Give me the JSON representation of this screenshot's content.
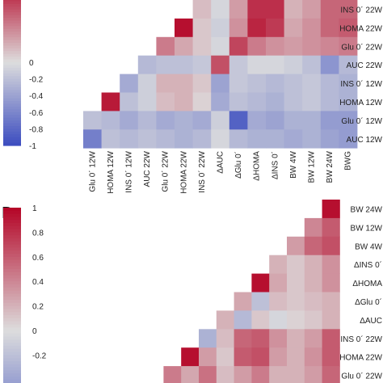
{
  "chart_data": [
    {
      "type": "heatmap",
      "panel_label": "",
      "title": "",
      "colorbar": {
        "range": [
          -1,
          1
        ],
        "visible_tick_labels": [
          "0",
          "-0.2",
          "-0.4",
          "-0.6",
          "-0.8",
          "-1"
        ],
        "colors": {
          "low": "#3b4cc0",
          "mid": "#dddddd",
          "high": "#b40426"
        }
      },
      "rows": [
        "INS 0´ 22W",
        "HOMA 22W",
        "Glu 0´ 22W",
        "AUC 22W",
        "INS 0´ 12W",
        "HOMA 12W",
        "Glu 0´ 12W",
        "AUC 12W"
      ],
      "columns": [
        "Glu 0´ 12W",
        "HOMA 12W",
        "INS 0´ 12W",
        "AUC 22W",
        "Glu 0´ 22W",
        "HOMA 22W",
        "INS 0´ 22W",
        "ΔAUC",
        "ΔGlu 0´",
        "ΔHOMA",
        "ΔINS 0´",
        "BW 4W",
        "BW 12W",
        "BW 24W",
        "BWG"
      ],
      "cells": [
        {
          "row": "INS 0´ 22W",
          "values": [
            null,
            null,
            null,
            null,
            null,
            null,
            0.15,
            -0.05,
            0.3,
            0.8,
            0.8,
            0.2,
            0.3,
            0.55,
            0.55
          ]
        },
        {
          "row": "HOMA 22W",
          "values": [
            null,
            null,
            null,
            null,
            null,
            0.95,
            0.1,
            -0.1,
            0.35,
            0.85,
            0.75,
            0.25,
            0.35,
            0.55,
            0.6
          ]
        },
        {
          "row": "Glu 0´ 22W",
          "values": [
            null,
            null,
            null,
            null,
            0.45,
            0.25,
            0.1,
            -0.05,
            0.7,
            0.45,
            0.35,
            0.3,
            0.35,
            0.4,
            0.45
          ]
        },
        {
          "row": "AUC 22W",
          "values": [
            null,
            null,
            null,
            -0.25,
            -0.2,
            -0.2,
            -0.15,
            0.65,
            -0.15,
            -0.05,
            -0.05,
            -0.1,
            -0.2,
            -0.5,
            -0.25
          ]
        },
        {
          "row": "INS 0´ 12W",
          "values": [
            null,
            null,
            -0.35,
            -0.1,
            0.2,
            0.2,
            0.1,
            -0.4,
            -0.15,
            -0.2,
            -0.25,
            -0.2,
            -0.15,
            -0.25,
            -0.3
          ]
        },
        {
          "row": "HOMA 12W",
          "values": [
            null,
            0.9,
            -0.2,
            -0.1,
            0.15,
            0.2,
            0.05,
            -0.35,
            -0.2,
            -0.25,
            -0.3,
            -0.2,
            -0.15,
            -0.25,
            -0.3
          ]
        },
        {
          "row": "Glu 0´ 12W",
          "values": [
            -0.2,
            -0.25,
            -0.35,
            -0.25,
            -0.35,
            -0.3,
            -0.35,
            -0.1,
            -0.85,
            -0.35,
            -0.4,
            -0.3,
            -0.3,
            -0.45,
            -0.45
          ]
        },
        {
          "row": "AUC 12W",
          "values": [
            -0.65,
            -0.2,
            -0.25,
            -0.2,
            -0.25,
            -0.3,
            -0.25,
            -0.05,
            -0.25,
            -0.3,
            -0.3,
            -0.35,
            -0.3,
            -0.4,
            -0.45
          ]
        }
      ]
    },
    {
      "type": "heatmap",
      "panel_label": "B",
      "title": "",
      "colorbar": {
        "range": [
          -1,
          1
        ],
        "visible_tick_labels": [
          "1",
          "0.8",
          "0.6",
          "0.4",
          "0.2",
          "0",
          "-0.2"
        ],
        "colors": {
          "low": "#3b4cc0",
          "mid": "#dddddd",
          "high": "#b40426"
        }
      },
      "rows": [
        "BW 24W",
        "BW 12W",
        "BW 4W",
        "ΔINS 0´",
        "ΔHOMA",
        "ΔGlu 0´",
        "ΔAUC",
        "INS 0´ 22W",
        "HOMA 22W",
        "Glu 0´ 22W"
      ],
      "cells": [
        {
          "row": "BW 24W",
          "values": [
            null,
            null,
            null,
            null,
            null,
            null,
            null,
            null,
            null,
            null,
            null,
            null,
            0.95
          ]
        },
        {
          "row": "BW 12W",
          "values": [
            null,
            null,
            null,
            null,
            null,
            null,
            null,
            null,
            null,
            null,
            null,
            0.4,
            0.6
          ]
        },
        {
          "row": "BW 4W",
          "values": [
            null,
            null,
            null,
            null,
            null,
            null,
            null,
            null,
            null,
            null,
            0.3,
            0.55,
            0.65
          ]
        },
        {
          "row": "ΔINS 0´",
          "values": [
            null,
            null,
            null,
            null,
            null,
            null,
            null,
            null,
            null,
            0.2,
            0.1,
            0.2,
            0.35
          ]
        },
        {
          "row": "ΔHOMA",
          "values": [
            null,
            null,
            null,
            null,
            null,
            null,
            null,
            null,
            0.95,
            0.25,
            0.1,
            0.2,
            0.35
          ]
        },
        {
          "row": "ΔGlu 0´",
          "values": [
            null,
            null,
            null,
            null,
            null,
            null,
            null,
            0.25,
            -0.2,
            0.15,
            0.1,
            0.15,
            0.2
          ]
        },
        {
          "row": "ΔAUC",
          "values": [
            null,
            null,
            null,
            null,
            null,
            null,
            0.2,
            -0.25,
            0.1,
            -0.05,
            0.05,
            0.1,
            0.2
          ]
        },
        {
          "row": "INS 0´ 22W",
          "values": [
            null,
            null,
            null,
            null,
            null,
            -0.3,
            0.15,
            0.55,
            0.6,
            0.35,
            0.2,
            0.3,
            0.6
          ]
        },
        {
          "row": "HOMA 22W",
          "values": [
            null,
            null,
            null,
            null,
            0.95,
            0.3,
            0.1,
            0.6,
            0.65,
            0.3,
            0.2,
            0.35,
            0.6
          ]
        },
        {
          "row": "Glu 0´ 22W",
          "values": [
            null,
            null,
            null,
            0.45,
            0.25,
            0.5,
            0.15,
            0.3,
            0.45,
            0.2,
            0.2,
            0.3,
            0.55
          ]
        }
      ]
    }
  ]
}
